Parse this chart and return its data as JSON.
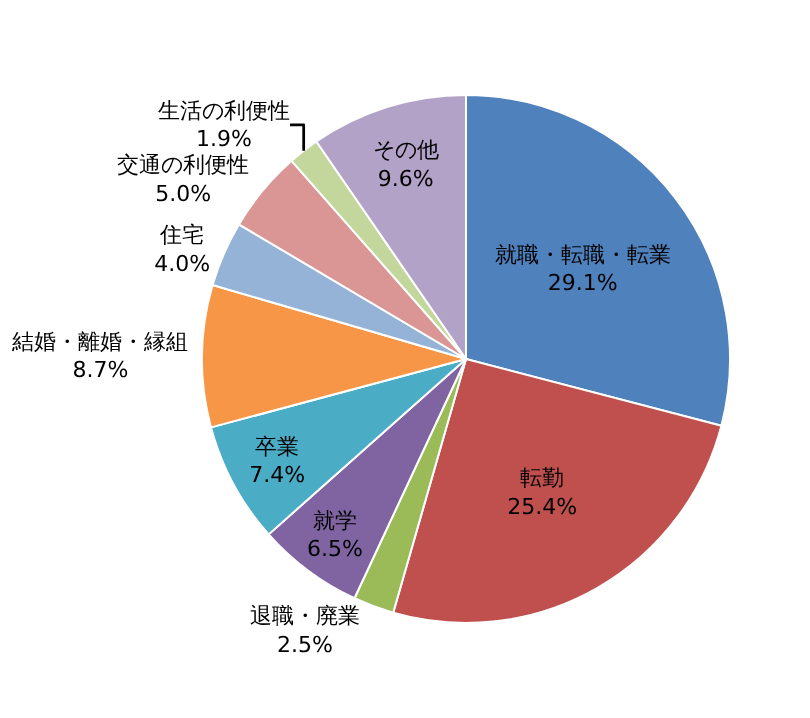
{
  "chart_data": {
    "type": "pie",
    "categories": [
      "就職・転職・転業",
      "転勤",
      "退職・廃業",
      "就学",
      "卒業",
      "結婚・離婚・縁組",
      "住宅",
      "交通の利便性",
      "生活の利便性",
      "その他"
    ],
    "values": [
      29.1,
      25.4,
      2.5,
      6.5,
      7.4,
      8.7,
      4.0,
      5.0,
      1.9,
      9.6
    ],
    "value_labels": [
      "29.1%",
      "25.4%",
      "2.5%",
      "6.5%",
      "7.4%",
      "8.7%",
      "4.0%",
      "5.0%",
      "1.9%",
      "9.6%"
    ],
    "colors": [
      "#4f81bd",
      "#c0504d",
      "#9bbb59",
      "#8064a2",
      "#4bacc6",
      "#f79646",
      "#95b3d7",
      "#d99694",
      "#c3d69b",
      "#b3a2c7"
    ],
    "legend": false
  }
}
